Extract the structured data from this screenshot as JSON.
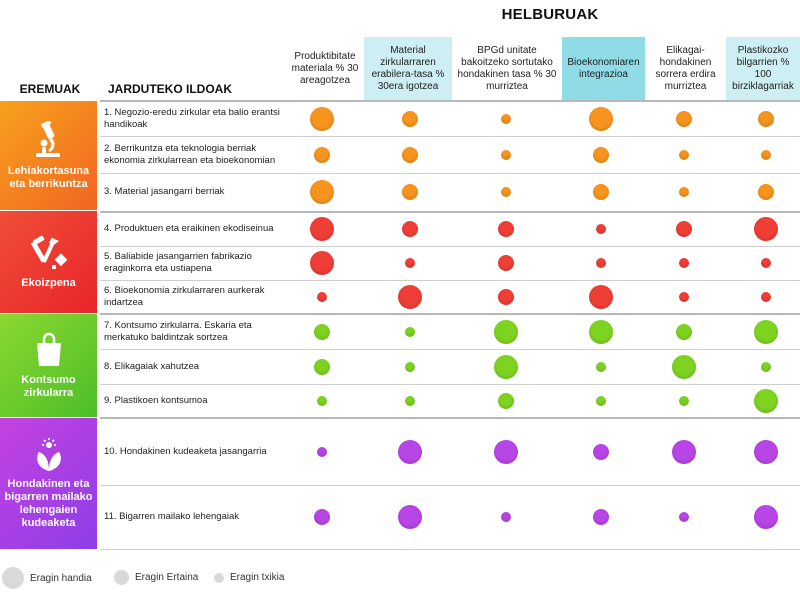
{
  "header": {
    "title": "HELBURUAK",
    "areas_label": "EREMUAK",
    "lines_label": "JARDUTEKO ILDOAK"
  },
  "objectives": [
    {
      "label": "Produktibitate materiala % 30 areagotzea",
      "bg": "#ffffff"
    },
    {
      "label": "Material zirkularraren erabilera-tasa % 30era igotzea",
      "bg": "#cdeef2"
    },
    {
      "label": "BPGd unitate bakoitzeko sortutako hondakinen tasa % 30 murriztea",
      "bg": "#ffffff"
    },
    {
      "label": "Bioekonomiaren integrazioa",
      "bg": "#8fdbe6"
    },
    {
      "label": "Elikagai-hondakinen sorrera erdira murriztea",
      "bg": "#ffffff"
    },
    {
      "label": "Plastikozko bilgarrien % 100 birziklagarriak",
      "bg": "#cdeef2"
    }
  ],
  "areas": [
    {
      "label": "Lehiakortasuna eta berrikuntza",
      "icon": "microscope-icon",
      "color": "#f7941d",
      "gradient": [
        "#f7a21c",
        "#f26522"
      ]
    },
    {
      "label": "Ekoizpena",
      "icon": "factory-tools-icon",
      "color": "#ef3e36",
      "gradient": [
        "#f04e37",
        "#e8252b"
      ]
    },
    {
      "label": "Kontsumo zirkularra",
      "icon": "shopping-bag-icon",
      "color": "#7ed321",
      "gradient": [
        "#8bd831",
        "#4cbe28"
      ]
    },
    {
      "label": "Hondakinen eta bigarren mailako lehengaien kudeaketa",
      "icon": "leaf-recycle-icon",
      "color": "#b845e6",
      "gradient": [
        "#c442e0",
        "#8e3ee8"
      ]
    }
  ],
  "legend": [
    {
      "label": "Eragin handia",
      "level": 3
    },
    {
      "label": "Eragin Ertaina",
      "level": 2
    },
    {
      "label": "Eragin txikia",
      "level": 1
    }
  ],
  "chart_data": {
    "type": "table",
    "impact_scale": {
      "3": "Eragin handia",
      "2": "Eragin Ertaina",
      "1": "Eragin txikia"
    },
    "rows": [
      {
        "area": 0,
        "label": "1. Negozio-eredu zirkular eta balio erantsi handikoak",
        "impact": [
          3,
          2,
          1,
          3,
          2,
          2
        ]
      },
      {
        "area": 0,
        "label": "2. Berrikuntza eta teknologia berriak ekonomia zirkularrean eta bioekonomian",
        "impact": [
          2,
          2,
          1,
          2,
          1,
          1
        ]
      },
      {
        "area": 0,
        "label": "3. Material jasangarri berriak",
        "impact": [
          3,
          2,
          1,
          2,
          1,
          2
        ]
      },
      {
        "area": 1,
        "label": "4. Produktuen eta eraikinen ekodiseinua",
        "impact": [
          3,
          2,
          2,
          1,
          2,
          3
        ]
      },
      {
        "area": 1,
        "label": "5. Baliabide jasangarrien fabrikazio eraginkorra eta ustiapena",
        "impact": [
          3,
          1,
          2,
          1,
          1,
          1
        ]
      },
      {
        "area": 1,
        "label": "6. Bioekonomia zirkularraren aurkerak indartzea",
        "impact": [
          1,
          3,
          2,
          3,
          1,
          1
        ]
      },
      {
        "area": 2,
        "label": "7. Kontsumo zirkularra. Eskaria eta merkatuko baldintzak sortzea",
        "impact": [
          2,
          1,
          3,
          3,
          2,
          3
        ]
      },
      {
        "area": 2,
        "label": "8. Elikagaiak xahutzea",
        "impact": [
          2,
          1,
          3,
          1,
          3,
          1
        ]
      },
      {
        "area": 2,
        "label": "9. Plastikoen kontsumoa",
        "impact": [
          1,
          1,
          2,
          1,
          1,
          3
        ]
      },
      {
        "area": 3,
        "label": "10. Hondakinen kudeaketa jasangarria",
        "impact": [
          1,
          3,
          3,
          2,
          3,
          3
        ]
      },
      {
        "area": 3,
        "label": "11. Bigarren mailako lehengaiak",
        "impact": [
          2,
          3,
          1,
          2,
          1,
          3
        ]
      }
    ]
  }
}
